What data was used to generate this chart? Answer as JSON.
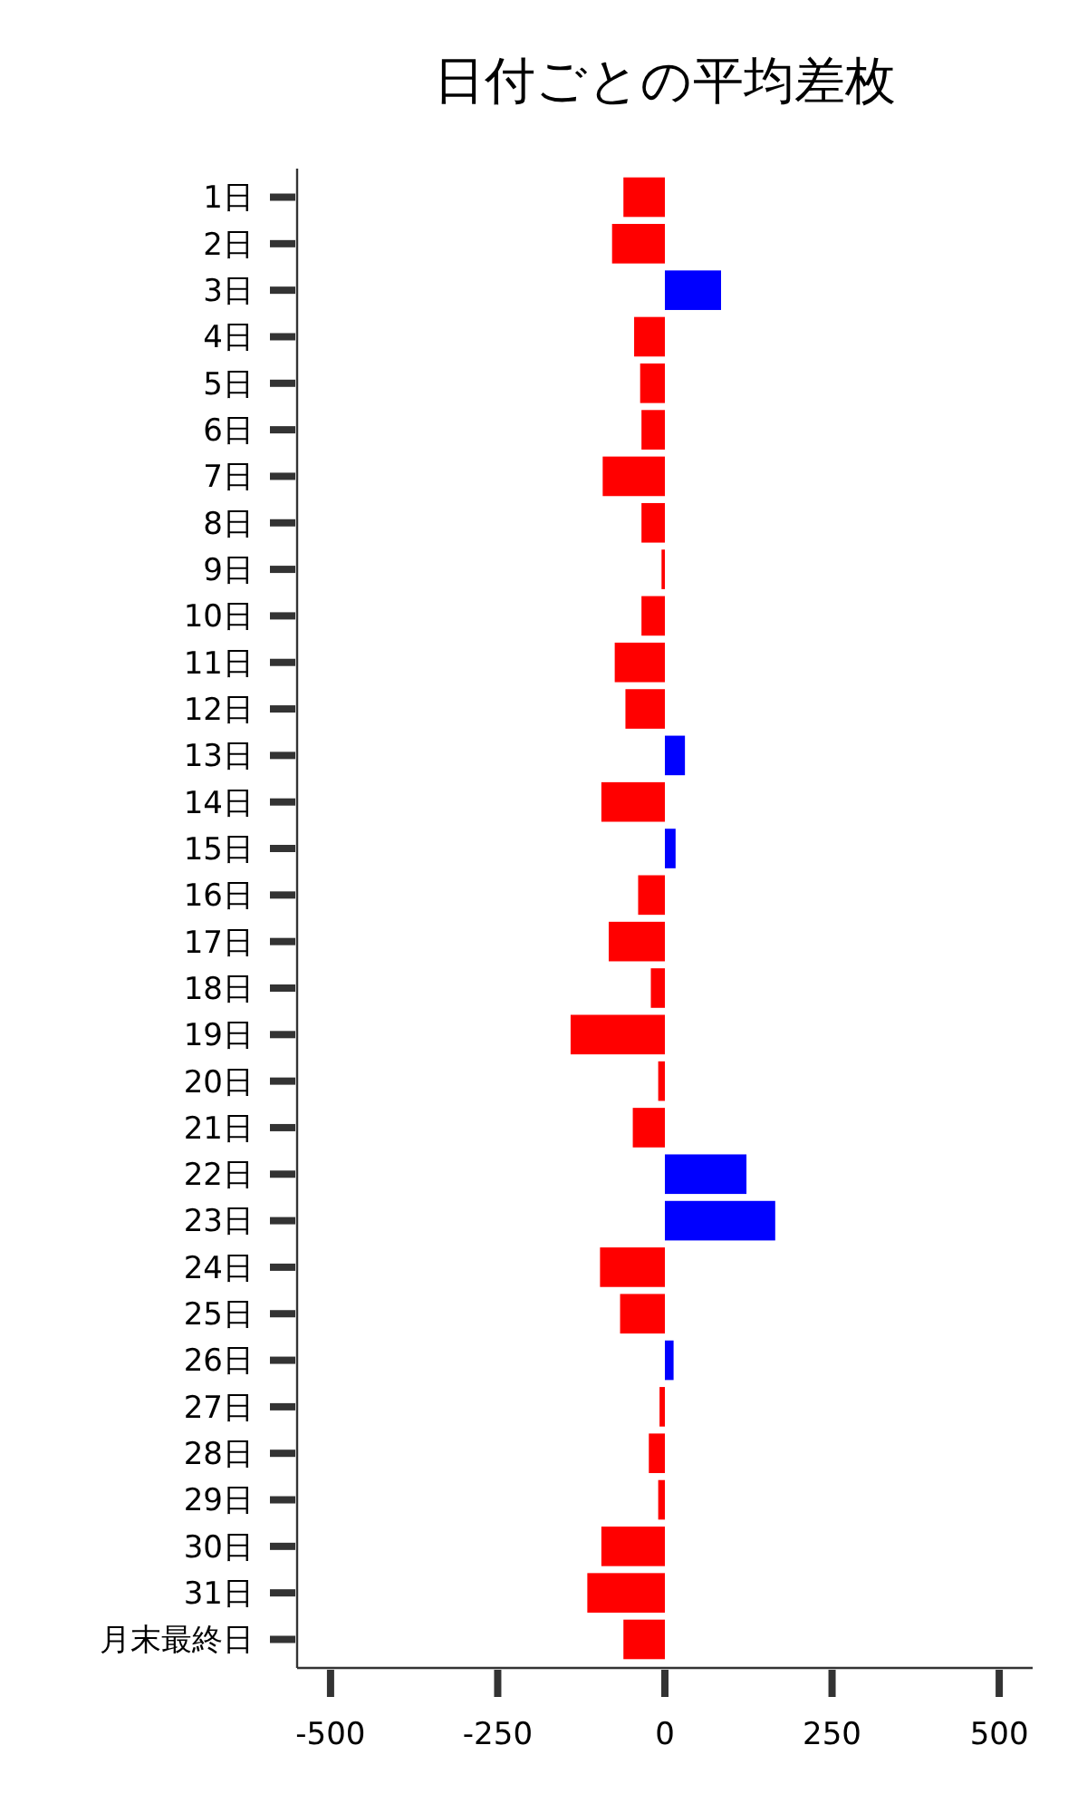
{
  "chart_data": {
    "type": "bar",
    "orientation": "horizontal",
    "title": "日付ごとの平均差枚",
    "categories": [
      "1日",
      "2日",
      "3日",
      "4日",
      "5日",
      "6日",
      "7日",
      "8日",
      "9日",
      "10日",
      "11日",
      "12日",
      "13日",
      "14日",
      "15日",
      "16日",
      "17日",
      "18日",
      "19日",
      "20日",
      "21日",
      "22日",
      "23日",
      "24日",
      "25日",
      "26日",
      "27日",
      "28日",
      "29日",
      "30日",
      "31日",
      "月末最終日"
    ],
    "values": [
      -62,
      -79,
      84,
      -46,
      -37,
      -35,
      -93,
      -35,
      -5,
      -35,
      -75,
      -59,
      30,
      -95,
      16,
      -40,
      -84,
      -21,
      -141,
      -10,
      -48,
      122,
      165,
      -97,
      -67,
      13,
      -8,
      -24,
      -10,
      -95,
      -116,
      -62
    ],
    "colors": [
      "#ff0000",
      "#ff0000",
      "#0000ff",
      "#ff0000",
      "#ff0000",
      "#ff0000",
      "#ff0000",
      "#ff0000",
      "#ff0000",
      "#ff0000",
      "#ff0000",
      "#ff0000",
      "#0000ff",
      "#ff0000",
      "#0000ff",
      "#ff0000",
      "#ff0000",
      "#ff0000",
      "#ff0000",
      "#ff0000",
      "#ff0000",
      "#0000ff",
      "#0000ff",
      "#ff0000",
      "#ff0000",
      "#0000ff",
      "#ff0000",
      "#ff0000",
      "#ff0000",
      "#ff0000",
      "#ff0000",
      "#ff0000"
    ],
    "xlim": [
      -550,
      550
    ],
    "xticks": [
      -500,
      -250,
      0,
      250,
      500
    ],
    "grid": false
  }
}
